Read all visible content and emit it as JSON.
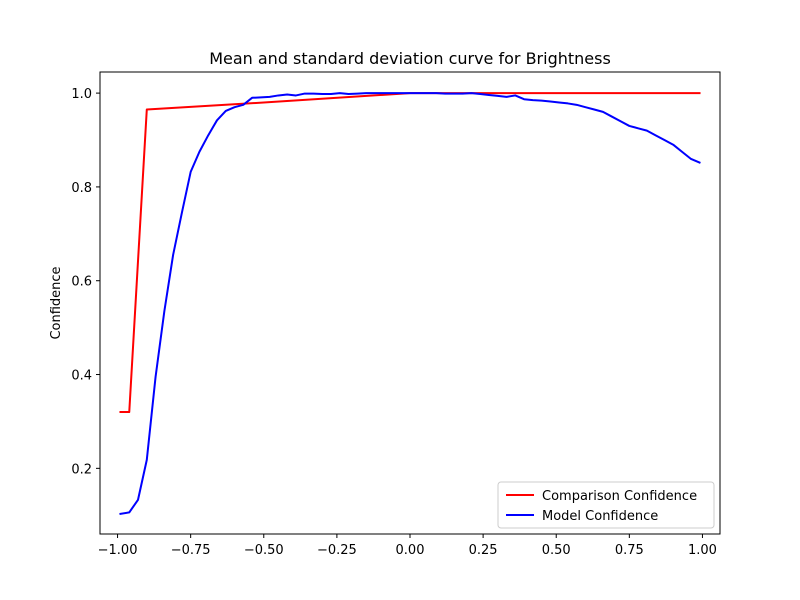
{
  "chart_data": {
    "type": "line",
    "title": "Mean and standard deviation curve for Brightness",
    "xlabel": "",
    "ylabel": "Confidence",
    "xlim": [
      -1.06,
      1.06
    ],
    "ylim": [
      0.06,
      1.045
    ],
    "xticks": [
      -1.0,
      -0.75,
      -0.5,
      -0.25,
      0.0,
      0.25,
      0.5,
      0.75,
      1.0
    ],
    "xtick_labels": [
      "−1.00",
      "−0.75",
      "−0.50",
      "−0.25",
      "0.00",
      "0.25",
      "0.50",
      "0.75",
      "1.00"
    ],
    "yticks": [
      0.2,
      0.4,
      0.6,
      0.8,
      1.0
    ],
    "ytick_labels": [
      "0.2",
      "0.4",
      "0.6",
      "0.8",
      "1.0"
    ],
    "grid": false,
    "legend": "lower-right",
    "series": [
      {
        "name": "Comparison Confidence",
        "color": "#ff0000",
        "x": [
          -0.99,
          -0.96,
          -0.9,
          -0.5,
          0.0,
          0.5,
          0.99
        ],
        "y": [
          0.32,
          0.32,
          0.965,
          0.98,
          1.0,
          1.0,
          1.0
        ]
      },
      {
        "name": "Model Confidence",
        "color": "#0000ff",
        "x": [
          -0.99,
          -0.96,
          -0.93,
          -0.9,
          -0.87,
          -0.84,
          -0.81,
          -0.78,
          -0.75,
          -0.72,
          -0.69,
          -0.66,
          -0.63,
          -0.6,
          -0.57,
          -0.54,
          -0.51,
          -0.48,
          -0.45,
          -0.42,
          -0.39,
          -0.36,
          -0.33,
          -0.3,
          -0.27,
          -0.24,
          -0.21,
          -0.18,
          -0.15,
          -0.12,
          -0.09,
          -0.06,
          -0.03,
          0.0,
          0.03,
          0.06,
          0.09,
          0.12,
          0.15,
          0.18,
          0.21,
          0.24,
          0.27,
          0.3,
          0.33,
          0.36,
          0.39,
          0.42,
          0.45,
          0.48,
          0.51,
          0.54,
          0.57,
          0.6,
          0.63,
          0.66,
          0.69,
          0.72,
          0.75,
          0.78,
          0.81,
          0.84,
          0.87,
          0.9,
          0.93,
          0.96,
          0.99
        ],
        "y": [
          0.103,
          0.106,
          0.133,
          0.218,
          0.395,
          0.535,
          0.655,
          0.745,
          0.832,
          0.875,
          0.91,
          0.942,
          0.962,
          0.97,
          0.975,
          0.99,
          0.991,
          0.992,
          0.995,
          0.997,
          0.995,
          0.999,
          0.999,
          0.998,
          0.998,
          1.0,
          0.998,
          0.999,
          1.0,
          1.0,
          1.0,
          1.0,
          1.0,
          1.0,
          1.0,
          1.0,
          1.0,
          0.999,
          0.999,
          0.999,
          1.0,
          0.998,
          0.996,
          0.994,
          0.992,
          0.995,
          0.987,
          0.985,
          0.984,
          0.982,
          0.98,
          0.978,
          0.975,
          0.97,
          0.965,
          0.96,
          0.95,
          0.94,
          0.93,
          0.925,
          0.92,
          0.91,
          0.9,
          0.89,
          0.875,
          0.86,
          0.852
        ]
      }
    ]
  }
}
